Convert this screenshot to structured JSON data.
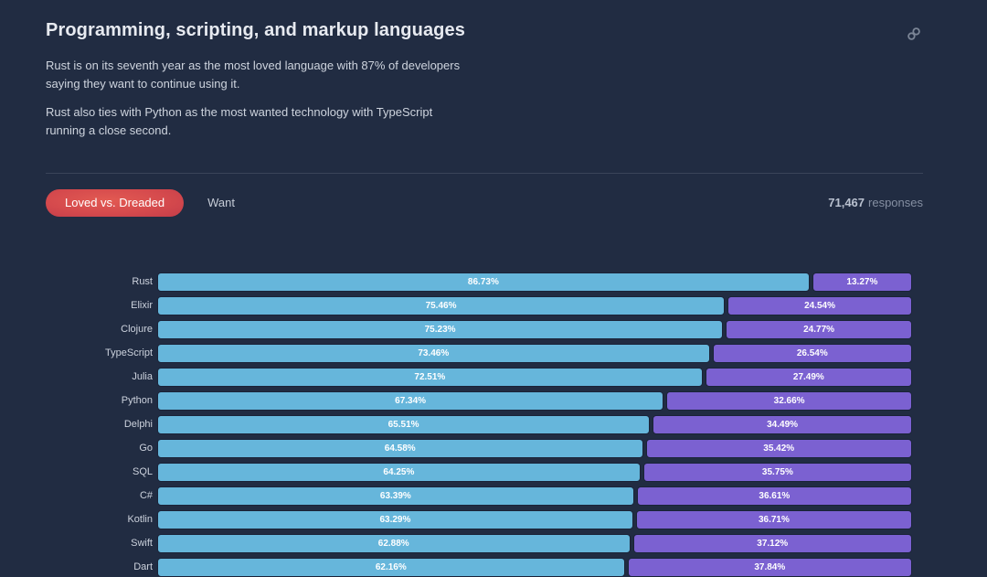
{
  "header": {
    "title": "Programming, scripting, and markup languages",
    "paragraph1": "Rust is on its seventh year as the most loved language with 87% of developers saying they want to continue using it.",
    "paragraph2": "Rust also ties with Python as the most wanted technology with TypeScript running a close second.",
    "anchor_icon": "link-icon"
  },
  "tabs": {
    "items": [
      {
        "label": "Loved vs. Dreaded",
        "active": true
      },
      {
        "label": "Want",
        "active": false
      }
    ],
    "responses_count": "71,467",
    "responses_label": "responses"
  },
  "colors": {
    "background": "#212c42",
    "loved_bar": "#66b6db",
    "dreaded_bar": "#7b61d1",
    "active_tab_red": "#d54a4d",
    "bar_text": "#ffffff"
  },
  "chart_data": {
    "type": "bar",
    "variant": "horizontal-stacked-100-percent",
    "title": "Loved vs. Dreaded",
    "value_suffix": "%",
    "legend": "none",
    "categories": [
      "Rust",
      "Elixir",
      "Clojure",
      "TypeScript",
      "Julia",
      "Python",
      "Delphi",
      "Go",
      "SQL",
      "C#",
      "Kotlin",
      "Swift",
      "Dart"
    ],
    "series": [
      {
        "name": "Loved",
        "color": "#66b6db",
        "values": [
          86.73,
          75.46,
          75.23,
          73.46,
          72.51,
          67.34,
          65.51,
          64.58,
          64.25,
          63.39,
          63.29,
          62.88,
          62.16
        ]
      },
      {
        "name": "Dreaded",
        "color": "#7b61d1",
        "values": [
          13.27,
          24.54,
          24.77,
          26.54,
          27.49,
          32.66,
          34.49,
          35.42,
          35.75,
          36.61,
          36.71,
          37.12,
          37.84
        ]
      }
    ],
    "xlim": [
      0,
      100
    ]
  }
}
